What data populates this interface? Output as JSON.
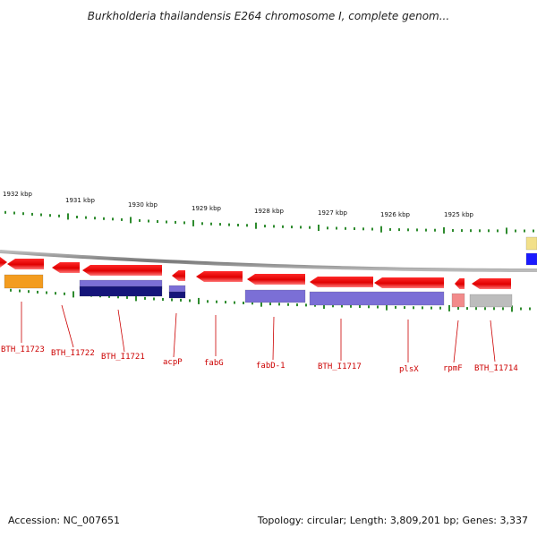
{
  "title": "Burkholderia thailandensis E264 chromosome I, complete genom...",
  "footer": {
    "accession": "Accession: NC_007651",
    "topology": "Topology: circular; Length: 3,809,201 bp; Genes: 3,337"
  },
  "scale": {
    "unit": "kbp",
    "ticks": [
      "1932 kbp",
      "1931 kbp",
      "1930 kbp",
      "1929 kbp",
      "1928 kbp",
      "1927 kbp",
      "1926 kbp",
      "1925 kbp"
    ]
  },
  "colors": {
    "gene": "#e60000",
    "tick": "#2e8b2e",
    "backbone": "#888888",
    "label": "#cc0000",
    "orange": "#f39c1f",
    "lavender": "#7b6fd6",
    "navy": "#15157a",
    "pink": "#f28b8b",
    "gray": "#bdbdbd",
    "yellow": "#f2e08a",
    "blue": "#1a1aff"
  },
  "genes": [
    "BTH_I1723",
    "BTH_I1722",
    "BTH_I1721",
    "acpP",
    "fabG",
    "fabD-1",
    "BTH_I1717",
    "plsX",
    "rpmF",
    "BTH_I1714"
  ]
}
